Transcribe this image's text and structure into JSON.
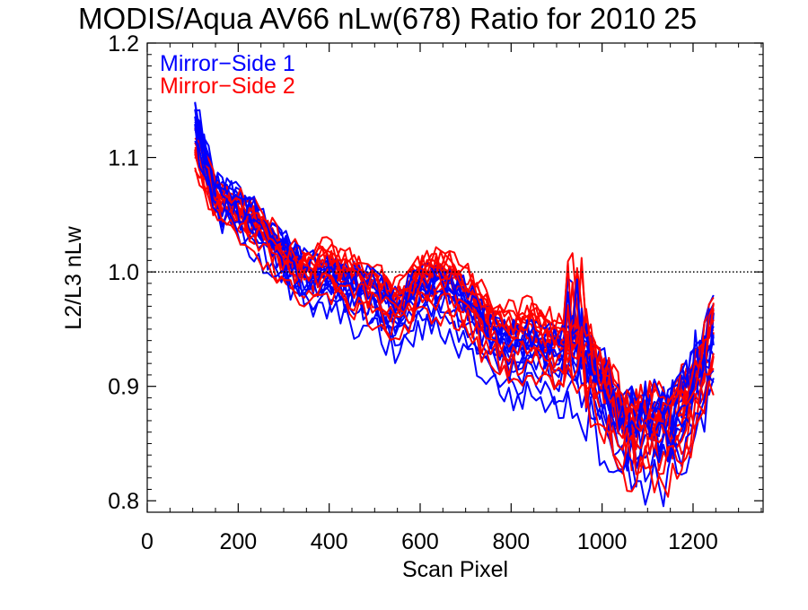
{
  "chart_data": {
    "type": "line",
    "title": "MODIS/Aqua AV66 nLw(678) Ratio for 2010 25",
    "xlabel": "Scan Pixel",
    "ylabel": "L2/L3 nLw",
    "xlim": [
      0,
      1354
    ],
    "ylim": [
      0.79,
      1.2
    ],
    "xticks": [
      0,
      200,
      400,
      600,
      800,
      1000,
      1200
    ],
    "xtick_labels": [
      "0",
      "200",
      "400",
      "600",
      "800",
      "1000",
      "1200"
    ],
    "yticks": [
      0.8,
      0.9,
      1.0,
      1.1,
      1.2
    ],
    "ytick_labels": [
      "0.8",
      "0.9",
      "1.0",
      "1.1",
      "1.2"
    ],
    "reference_line": {
      "y": 1.0,
      "style": "dotted",
      "color": "#000000"
    },
    "legend": {
      "placement": "top-left",
      "entries": [
        {
          "label": "Mirror−Side 1",
          "color": "#0000ff"
        },
        {
          "label": "Mirror−Side 2",
          "color": "#ff0000"
        }
      ]
    },
    "series_groups": [
      {
        "name": "Mirror−Side 1",
        "color": "#0000ff",
        "x": [
          105,
          150,
          200,
          250,
          300,
          350,
          400,
          450,
          500,
          550,
          600,
          650,
          700,
          750,
          800,
          850,
          900,
          950,
          1000,
          1050,
          1100,
          1150,
          1200,
          1250
        ],
        "base_values": [
          1.14,
          1.07,
          1.065,
          1.04,
          1.02,
          1.0,
          1.0,
          0.99,
          0.985,
          0.965,
          0.99,
          0.99,
          0.975,
          0.95,
          0.935,
          0.94,
          0.93,
          0.935,
          0.905,
          0.87,
          0.875,
          0.875,
          0.91,
          0.96
        ],
        "offsets": [
          0.012,
          0.004,
          -0.006,
          -0.016,
          0.01,
          0.0,
          -0.01,
          0.018,
          -0.022,
          0.006,
          -0.004,
          -0.03,
          -0.045,
          -0.06
        ],
        "wiggles": [
          0.012,
          0.009,
          0.015,
          0.011,
          0.013,
          0.008,
          0.014,
          0.01,
          0.012,
          0.016,
          0.009,
          0.013,
          0.011,
          0.014
        ]
      },
      {
        "name": "Mirror−Side 2",
        "color": "#ff0000",
        "x": [
          105,
          150,
          200,
          250,
          300,
          350,
          400,
          450,
          500,
          550,
          600,
          650,
          700,
          750,
          800,
          850,
          900,
          950,
          1000,
          1050,
          1100,
          1150,
          1200,
          1250
        ],
        "base_values": [
          1.11,
          1.065,
          1.055,
          1.04,
          1.015,
          1.005,
          1.01,
          1.0,
          0.99,
          0.975,
          1.0,
          1.0,
          0.99,
          0.96,
          0.95,
          0.955,
          0.94,
          0.945,
          0.91,
          0.87,
          0.875,
          0.87,
          0.9,
          0.96
        ],
        "offsets": [
          0.015,
          0.005,
          -0.005,
          -0.014,
          0.01,
          0.002,
          -0.008,
          0.02,
          -0.018,
          0.004,
          -0.002,
          -0.028,
          -0.04,
          -0.055
        ],
        "wiggles": [
          0.01,
          0.012,
          0.009,
          0.014,
          0.011,
          0.013,
          0.01,
          0.012,
          0.015,
          0.009,
          0.013,
          0.011,
          0.012,
          0.01
        ]
      }
    ]
  }
}
